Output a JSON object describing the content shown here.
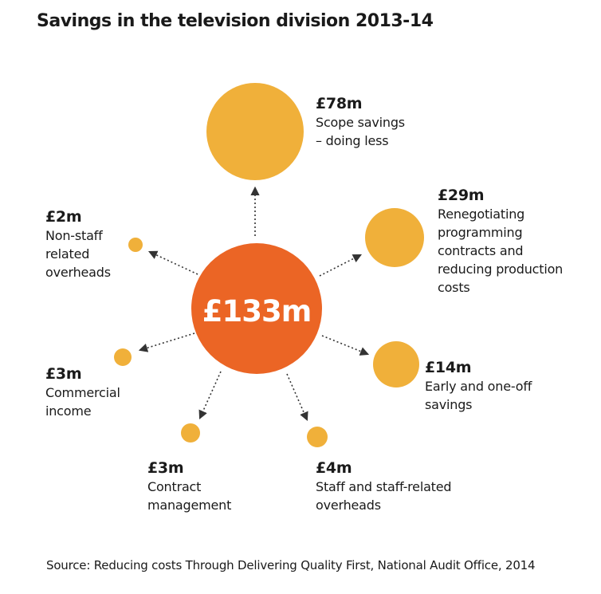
{
  "title": "Savings in the television division 2013-14",
  "source": "Source: Reducing costs Through Delivering Quality First, National Audit Office, 2014",
  "colors": {
    "center": "#EB6525",
    "item": "#F0B03A",
    "arrow": "#333333"
  },
  "center": {
    "label": "£133m",
    "value": 133
  },
  "items": [
    {
      "amount": "£78m",
      "value": 78,
      "description": "Scope savings\n– doing less"
    },
    {
      "amount": "£29m",
      "value": 29,
      "description": "Renegotiating\nprogramming\ncontracts and\nreducing production\ncosts"
    },
    {
      "amount": "£14m",
      "value": 14,
      "description": "Early and one-off\nsavings"
    },
    {
      "amount": "£4m",
      "value": 4,
      "description": "Staff and staff-related\noverheads"
    },
    {
      "amount": "£3m",
      "value": 3,
      "description": "Contract\nmanagement"
    },
    {
      "amount": "£3m",
      "value": 3,
      "description": "Commercial\nincome"
    },
    {
      "amount": "£2m",
      "value": 2,
      "description": "Non-staff\nrelated\noverheads"
    }
  ]
}
